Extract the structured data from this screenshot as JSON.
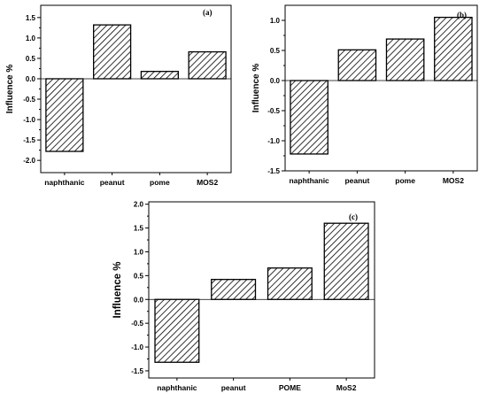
{
  "chart_data": [
    {
      "type": "bar",
      "panel_label": "(a)",
      "ylabel": "Influence %",
      "xlabel": "",
      "categories": [
        "naphthanic",
        "peanut",
        "pome",
        "MOS2"
      ],
      "values": [
        -1.78,
        1.32,
        0.18,
        0.66
      ],
      "ylim": [
        -2.3,
        1.8
      ],
      "yticks": [
        "-2.0",
        "-1.5",
        "-1.0",
        "-0.5",
        "0.0",
        "0.5",
        "1.0",
        "1.5"
      ],
      "ytick_values": [
        -2.0,
        -1.5,
        -1.0,
        -0.5,
        0.0,
        0.5,
        1.0,
        1.5
      ],
      "grid": false,
      "fill_pattern": "diagonal-hatch",
      "bar_color": "#000000"
    },
    {
      "type": "bar",
      "panel_label": "(b)",
      "ylabel": "Influence %",
      "xlabel": "",
      "categories": [
        "naphthanic",
        "peanut",
        "pome",
        "MOS2"
      ],
      "values": [
        -1.22,
        0.51,
        0.69,
        1.05
      ],
      "ylim": [
        -1.5,
        1.25
      ],
      "yticks": [
        "-1.5",
        "-1.0",
        "-0.5",
        "0.0",
        "0.5",
        "1.0"
      ],
      "ytick_values": [
        -1.5,
        -1.0,
        -0.5,
        0.0,
        0.5,
        1.0
      ],
      "grid": false,
      "fill_pattern": "diagonal-hatch",
      "bar_color": "#000000"
    },
    {
      "type": "bar",
      "panel_label": "(c)",
      "ylabel": "Influence %",
      "xlabel": "",
      "categories": [
        "naphthanic",
        "peanut",
        "POME",
        "MoS2"
      ],
      "values": [
        -1.32,
        0.42,
        0.66,
        1.6
      ],
      "ylim": [
        -1.65,
        2.05
      ],
      "yticks": [
        "-1.5",
        "-1.0",
        "-0.5",
        "0.0",
        "0.5",
        "1.0",
        "1.5",
        "2.0"
      ],
      "ytick_values": [
        -1.5,
        -1.0,
        -0.5,
        0.0,
        0.5,
        1.0,
        1.5,
        2.0
      ],
      "grid": false,
      "fill_pattern": "diagonal-hatch",
      "bar_color": "#000000"
    }
  ]
}
